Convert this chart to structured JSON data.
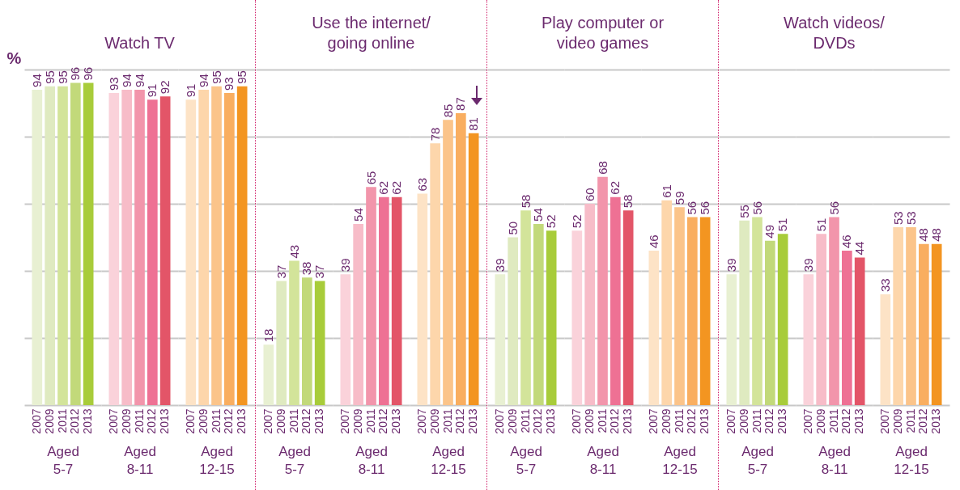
{
  "chart_data": [
    {
      "type": "bar",
      "xlabel": "Aged 5-7",
      "ylabel": "%",
      "categories": [
        "2007",
        "2009",
        "2011",
        "2012",
        "2013"
      ],
      "values": [
        94,
        95,
        95,
        96,
        96
      ],
      "colors": [
        "#e8f0d2",
        "#dfeac0",
        "#d3e49a",
        "#c2d97a",
        "#a8cc3a"
      ],
      "ylim": [
        0,
        100
      ],
      "yticks": [
        {
          "value": 0,
          "label": null
        },
        {
          "value": 20,
          "label": null
        },
        {
          "value": 40,
          "label": null
        },
        {
          "value": 60,
          "label": null
        },
        {
          "value": 80,
          "label": null
        },
        {
          "value": 100,
          "label": null
        }
      ],
      "grid": "y",
      "tick_labels": "x",
      "data_labels": true
    },
    {
      "type": "bar",
      "title": "Watch TV",
      "xlabel": "Aged 8-11",
      "categories": [
        "2007",
        "2009",
        "2011",
        "2012",
        "2013"
      ],
      "values": [
        93,
        94,
        94,
        91,
        92
      ],
      "colors": [
        "#fad2da",
        "#f7bcc8",
        "#f295ab",
        "#ee7194",
        "#e35568"
      ],
      "ylim": [
        0,
        100
      ],
      "yticks": [
        {
          "value": 0,
          "label": null
        },
        {
          "value": 20,
          "label": null
        },
        {
          "value": 40,
          "label": null
        },
        {
          "value": 60,
          "label": null
        },
        {
          "value": 80,
          "label": null
        },
        {
          "value": 100,
          "label": null
        }
      ],
      "grid": "y",
      "tick_labels": "x",
      "data_labels": true
    },
    {
      "type": "bar",
      "xlabel": "Aged 12-15",
      "categories": [
        "2007",
        "2009",
        "2011",
        "2012",
        "2013"
      ],
      "values": [
        91,
        94,
        95,
        93,
        95
      ],
      "colors": [
        "#fde3c6",
        "#fdd6ab",
        "#fbc48a",
        "#f9ae60",
        "#f39521"
      ],
      "ylim": [
        0,
        100
      ],
      "yticks": [
        {
          "value": 0,
          "label": null
        },
        {
          "value": 20,
          "label": null
        },
        {
          "value": 40,
          "label": null
        },
        {
          "value": 60,
          "label": null
        },
        {
          "value": 80,
          "label": null
        },
        {
          "value": 100,
          "label": null
        }
      ],
      "grid": "y",
      "tick_labels": "x",
      "data_labels": true
    },
    {
      "type": "bar",
      "xlabel": "Aged 5-7",
      "categories": [
        "2007",
        "2009",
        "2011",
        "2012",
        "2013"
      ],
      "values": [
        18,
        37,
        43,
        38,
        37
      ],
      "colors": [
        "#e8f0d2",
        "#dfeac0",
        "#d3e49a",
        "#c2d97a",
        "#a8cc3a"
      ],
      "ylim": [
        0,
        100
      ],
      "yticks": [
        {
          "value": 0,
          "label": null
        },
        {
          "value": 20,
          "label": null
        },
        {
          "value": 40,
          "label": null
        },
        {
          "value": 60,
          "label": null
        },
        {
          "value": 80,
          "label": null
        },
        {
          "value": 100,
          "label": null
        }
      ],
      "grid": "y",
      "tick_labels": "x",
      "data_labels": true
    },
    {
      "type": "bar",
      "title": "Use the internet/ going online",
      "xlabel": "Aged 8-11",
      "categories": [
        "2007",
        "2009",
        "2011",
        "2012",
        "2013"
      ],
      "values": [
        39,
        54,
        65,
        62,
        62
      ],
      "colors": [
        "#fad2da",
        "#f7bcc8",
        "#f295ab",
        "#ee7194",
        "#e35568"
      ],
      "ylim": [
        0,
        100
      ],
      "yticks": [
        {
          "value": 0,
          "label": null
        },
        {
          "value": 20,
          "label": null
        },
        {
          "value": 40,
          "label": null
        },
        {
          "value": 60,
          "label": null
        },
        {
          "value": 80,
          "label": null
        },
        {
          "value": 100,
          "label": null
        }
      ],
      "grid": "y",
      "tick_labels": "x",
      "data_labels": true
    },
    {
      "type": "bar",
      "xlabel": "Aged 12-15",
      "categories": [
        "2007",
        "2009",
        "2011",
        "2012",
        "2013"
      ],
      "values": [
        63,
        78,
        85,
        87,
        81
      ],
      "colors": [
        "#fde3c6",
        "#fdd6ab",
        "#fbc48a",
        "#f9ae60",
        "#f39521"
      ],
      "ylim": [
        0,
        100
      ],
      "yticks": [
        {
          "value": 0,
          "label": null
        },
        {
          "value": 20,
          "label": null
        },
        {
          "value": 40,
          "label": null
        },
        {
          "value": 60,
          "label": null
        },
        {
          "value": 80,
          "label": null
        },
        {
          "value": 100,
          "label": null
        }
      ],
      "grid": "y",
      "tick_labels": "x",
      "data_labels": true
    },
    {
      "type": "bar",
      "xlabel": "Aged 5-7",
      "categories": [
        "2007",
        "2009",
        "2011",
        "2012",
        "2013"
      ],
      "values": [
        39,
        50,
        58,
        54,
        52
      ],
      "colors": [
        "#e8f0d2",
        "#dfeac0",
        "#d3e49a",
        "#c2d97a",
        "#a8cc3a"
      ],
      "ylim": [
        0,
        100
      ],
      "yticks": [
        {
          "value": 0,
          "label": null
        },
        {
          "value": 20,
          "label": null
        },
        {
          "value": 40,
          "label": null
        },
        {
          "value": 60,
          "label": null
        },
        {
          "value": 80,
          "label": null
        },
        {
          "value": 100,
          "label": null
        }
      ],
      "grid": "y",
      "tick_labels": "x",
      "data_labels": true
    },
    {
      "type": "bar",
      "title": "Play computer or video games",
      "xlabel": "Aged 8-11",
      "categories": [
        "2007",
        "2009",
        "2011",
        "2012",
        "2013"
      ],
      "values": [
        52,
        60,
        68,
        62,
        58
      ],
      "colors": [
        "#fad2da",
        "#f7bcc8",
        "#f295ab",
        "#ee7194",
        "#e35568"
      ],
      "ylim": [
        0,
        100
      ],
      "yticks": [
        {
          "value": 0,
          "label": null
        },
        {
          "value": 20,
          "label": null
        },
        {
          "value": 40,
          "label": null
        },
        {
          "value": 60,
          "label": null
        },
        {
          "value": 80,
          "label": null
        },
        {
          "value": 100,
          "label": null
        }
      ],
      "grid": "y",
      "tick_labels": "x",
      "data_labels": true
    },
    {
      "type": "bar",
      "xlabel": "Aged 12-15",
      "categories": [
        "2007",
        "2009",
        "2011",
        "2012",
        "2013"
      ],
      "values": [
        46,
        61,
        59,
        56,
        56
      ],
      "colors": [
        "#fde3c6",
        "#fdd6ab",
        "#fbc48a",
        "#f9ae60",
        "#f39521"
      ],
      "ylim": [
        0,
        100
      ],
      "yticks": [
        {
          "value": 0,
          "label": null
        },
        {
          "value": 20,
          "label": null
        },
        {
          "value": 40,
          "label": null
        },
        {
          "value": 60,
          "label": null
        },
        {
          "value": 80,
          "label": null
        },
        {
          "value": 100,
          "label": null
        }
      ],
      "grid": "y",
      "tick_labels": "x",
      "data_labels": true
    },
    {
      "type": "bar",
      "xlabel": "Aged 5-7",
      "categories": [
        "2007",
        "2009",
        "2011",
        "2012",
        "2013"
      ],
      "values": [
        39,
        55,
        56,
        49,
        51
      ],
      "colors": [
        "#e8f0d2",
        "#dfeac0",
        "#d3e49a",
        "#c2d97a",
        "#a8cc3a"
      ],
      "ylim": [
        0,
        100
      ],
      "yticks": [
        {
          "value": 0,
          "label": null
        },
        {
          "value": 20,
          "label": null
        },
        {
          "value": 40,
          "label": null
        },
        {
          "value": 60,
          "label": null
        },
        {
          "value": 80,
          "label": null
        },
        {
          "value": 100,
          "label": null
        }
      ],
      "grid": "y",
      "tick_labels": "x",
      "data_labels": true
    },
    {
      "type": "bar",
      "title": "Watch videos/ DVDs",
      "xlabel": "Aged 8-11",
      "categories": [
        "2007",
        "2009",
        "2011",
        "2012",
        "2013"
      ],
      "values": [
        39,
        51,
        56,
        46,
        44
      ],
      "colors": [
        "#fad2da",
        "#f7bcc8",
        "#f295ab",
        "#ee7194",
        "#e35568"
      ],
      "ylim": [
        0,
        100
      ],
      "yticks": [
        {
          "value": 0,
          "label": null
        },
        {
          "value": 20,
          "label": null
        },
        {
          "value": 40,
          "label": null
        },
        {
          "value": 60,
          "label": null
        },
        {
          "value": 80,
          "label": null
        },
        {
          "value": 100,
          "label": null
        }
      ],
      "grid": "y",
      "tick_labels": "x",
      "data_labels": true
    },
    {
      "type": "bar",
      "xlabel": "Aged 12-15",
      "categories": [
        "2007",
        "2009",
        "2011",
        "2012",
        "2013"
      ],
      "values": [
        33,
        53,
        53,
        48,
        48
      ],
      "colors": [
        "#fde3c6",
        "#fdd6ab",
        "#fbc48a",
        "#f9ae60",
        "#f39521"
      ],
      "ylim": [
        0,
        100
      ],
      "yticks": [
        {
          "value": 0,
          "label": null
        },
        {
          "value": 20,
          "label": null
        },
        {
          "value": 40,
          "label": null
        },
        {
          "value": 60,
          "label": null
        },
        {
          "value": 80,
          "label": null
        },
        {
          "value": 100,
          "label": null
        }
      ],
      "grid": "y",
      "tick_labels": "x",
      "data_labels": true
    }
  ]
}
